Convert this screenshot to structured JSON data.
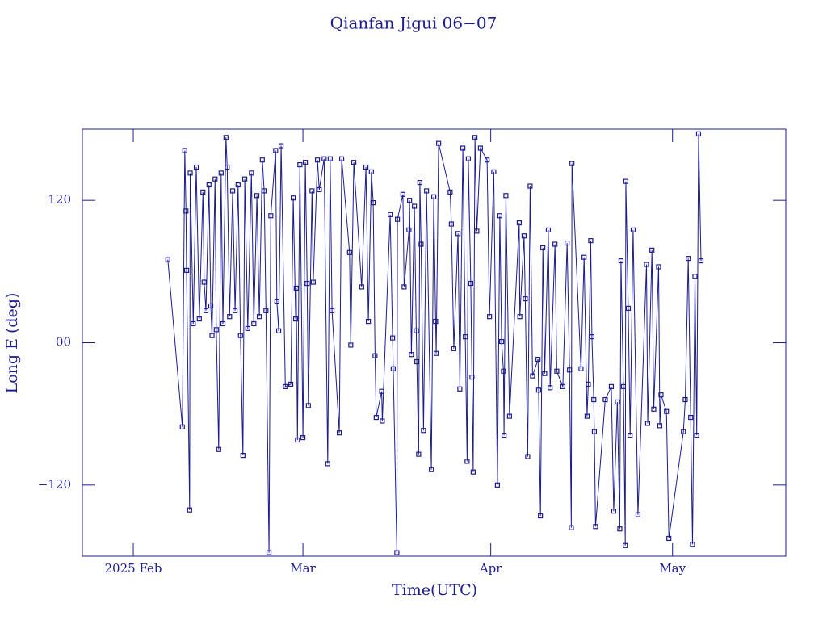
{
  "chart_data": {
    "type": "line",
    "title": "Qianfan Jigui 06−07",
    "x_label": "Time(UTC)",
    "y_label": "Long E (deg)",
    "xlim": [
      -8.4,
      107.7
    ],
    "ylim": [
      -180,
      180
    ],
    "xticks": [
      {
        "value": 0,
        "label": "2025 Feb"
      },
      {
        "value": 28,
        "label": "Mar"
      },
      {
        "value": 59,
        "label": "Apr"
      },
      {
        "value": 89,
        "label": "May"
      }
    ],
    "yticks": [
      {
        "value": -120,
        "label": "−120"
      },
      {
        "value": 0,
        "label": "00"
      },
      120
    ],
    "color": "#1c1c8f",
    "marker": "square",
    "x": [
      5.7,
      8.1,
      8.5,
      8.7,
      8.8,
      9.3,
      9.4,
      9.9,
      10.4,
      10.9,
      11.5,
      11.7,
      12,
      12.5,
      12.8,
      13,
      13.5,
      13.7,
      14.1,
      14.5,
      14.8,
      15.3,
      15.5,
      15.9,
      16.4,
      16.8,
      17.3,
      17.7,
      18.1,
      18.4,
      18.9,
      19.5,
      19.9,
      20.4,
      20.8,
      21.3,
      21.6,
      21.9,
      22.4,
      22.7,
      23.5,
      23.7,
      24,
      24.4,
      25.1,
      26,
      26.4,
      26.8,
      26.9,
      27.1,
      27.5,
      28,
      28.4,
      28.7,
      28.9,
      29.5,
      29.7,
      30.4,
      30.7,
      31.5,
      32.1,
      32.5,
      32.8,
      34,
      34.4,
      35.7,
      35.9,
      36.4,
      37.7,
      38.4,
      38.8,
      39.3,
      39.6,
      39.9,
      40.1,
      41,
      41.1,
      42.4,
      42.8,
      42.9,
      43.5,
      43.6,
      44.5,
      44.7,
      45.5,
      45.6,
      45.9,
      46.4,
      46.7,
      46.8,
      47.1,
      47.3,
      47.5,
      47.9,
      48.4,
      49.2,
      49.6,
      49.9,
      50,
      50.4,
      52.3,
      52.5,
      52.9,
      53.6,
      53.9,
      54.4,
      54.8,
      55.1,
      55.3,
      55.7,
      55.9,
      56.1,
      56.4,
      56.7,
      57.3,
      58.4,
      58.8,
      59.5,
      60.1,
      60.5,
      60.8,
      61.1,
      61.2,
      61.5,
      62.1,
      63.7,
      63.8,
      64.5,
      64.7,
      65.1,
      65.5,
      65.9,
      66.8,
      66.9,
      67.2,
      67.6,
      67.9,
      68.5,
      68.8,
      69.6,
      69.9,
      70.9,
      71.6,
      72,
      72.3,
      72.4,
      73.9,
      74.4,
      74.9,
      75.1,
      75.5,
      75.7,
      76,
      76.1,
      76.3,
      77.9,
      78.9,
      79.3,
      79.9,
      80.3,
      80.5,
      80.9,
      81.2,
      81.3,
      81.7,
      82,
      82.5,
      83.3,
      84.7,
      84.9,
      85.6,
      85.9,
      86.7,
      86.9,
      87.1,
      88,
      88.4,
      90.8,
      91.1,
      91.6,
      92,
      92.3,
      92.7,
      93,
      93.3,
      93.7
    ],
    "values": [
      70,
      -71,
      162,
      111,
      61,
      -141,
      143,
      16,
      148,
      20,
      127,
      51,
      27,
      133,
      31,
      6,
      138,
      11,
      -90,
      143,
      16,
      173,
      148,
      22,
      128,
      27,
      133,
      6,
      -95,
      138,
      12,
      143,
      16,
      124,
      22,
      154,
      128,
      27,
      -177,
      107,
      162,
      35,
      10,
      166,
      -37,
      -35,
      122,
      20,
      46,
      -82,
      150,
      -80,
      152,
      50,
      -53,
      128,
      51,
      154,
      129,
      155,
      -102,
      155,
      27,
      -76,
      155,
      76,
      -2,
      152,
      47,
      148,
      18,
      144,
      118,
      -11,
      -63,
      -41,
      -66,
      108,
      4,
      -22,
      -177,
      104,
      125,
      47,
      95,
      120,
      -10,
      115,
      10,
      -16,
      -94,
      135,
      83,
      -74,
      128,
      -107,
      123,
      18,
      -9,
      168,
      127,
      100,
      -5,
      92,
      -39,
      164,
      5,
      -100,
      155,
      50,
      -29,
      -109,
      173,
      94,
      164,
      154,
      22,
      144,
      -120,
      107,
      1,
      -24,
      -78,
      124,
      -62,
      101,
      22,
      90,
      37,
      -96,
      132,
      -28,
      -14,
      -40,
      -146,
      80,
      -26,
      95,
      -38,
      83,
      -24,
      -37,
      84,
      -23,
      -156,
      151,
      -22,
      72,
      -62,
      -35,
      86,
      5,
      -48,
      -75,
      -155,
      -48,
      -37,
      -142,
      -50,
      -157,
      69,
      -37,
      -171,
      136,
      29,
      -78,
      95,
      -145,
      66,
      -68,
      78,
      -56,
      64,
      -70,
      -44,
      -58,
      -165,
      -75,
      -48,
      71,
      -63,
      -170,
      56,
      -78,
      176,
      69
    ]
  }
}
